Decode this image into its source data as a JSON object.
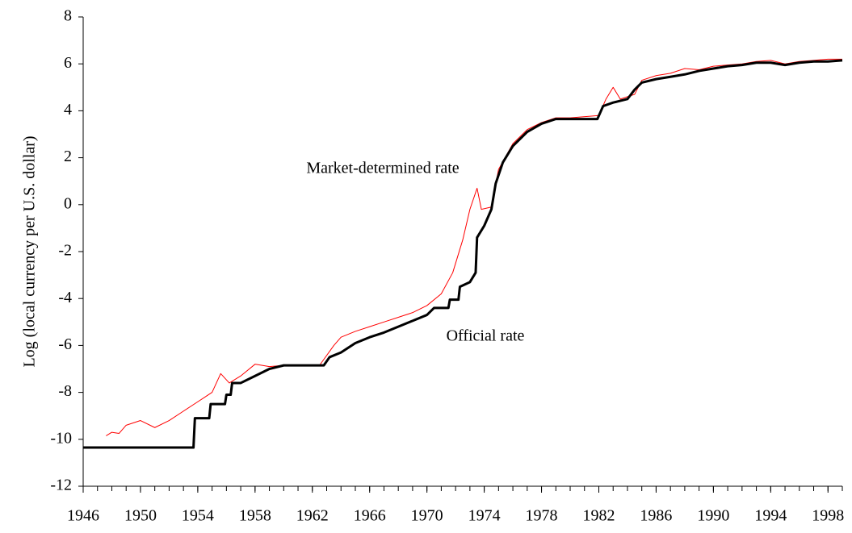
{
  "chart_data": {
    "type": "line",
    "y_label": "Log (local currency per U.S. dollar)",
    "annotations": [
      "Market-determined rate",
      "Official rate"
    ],
    "xlim": [
      1946,
      1999
    ],
    "xticks": [
      1946,
      1950,
      1954,
      1958,
      1962,
      1966,
      1970,
      1974,
      1978,
      1982,
      1986,
      1990,
      1994,
      1998
    ],
    "ylim": [
      -12,
      8
    ],
    "yticks": [
      -12,
      -10,
      -8,
      -6,
      -4,
      -2,
      0,
      2,
      4,
      6,
      8
    ],
    "grid": false,
    "series": [
      {
        "name": "Market-determined rate",
        "color": "#ff0000",
        "x": [
          1947.6,
          1948,
          1948.5,
          1949,
          1950,
          1951,
          1952,
          1953,
          1954,
          1955,
          1955.6,
          1956.2,
          1957,
          1958,
          1959,
          1960,
          1962.5,
          1963.5,
          1964,
          1965,
          1966,
          1967,
          1968,
          1969,
          1970,
          1971,
          1971.8,
          1972.5,
          1973,
          1973.5,
          1973.8,
          1974.5,
          1975,
          1976,
          1977,
          1978,
          1979,
          1980,
          1982,
          1982.5,
          1983,
          1983.5,
          1984.5,
          1985,
          1986,
          1987,
          1988,
          1989,
          1990,
          1991,
          1992,
          1993,
          1994,
          1995,
          1996,
          1997,
          1998,
          1999
        ],
        "values": [
          -9.85,
          -9.7,
          -9.75,
          -9.4,
          -9.2,
          -9.5,
          -9.2,
          -8.8,
          -8.4,
          -8.0,
          -7.2,
          -7.6,
          -7.3,
          -6.8,
          -6.9,
          -6.85,
          -6.85,
          -6.0,
          -5.65,
          -5.4,
          -5.2,
          -5.0,
          -4.8,
          -4.6,
          -4.3,
          -3.8,
          -2.9,
          -1.5,
          -0.2,
          0.7,
          -0.2,
          -0.1,
          1.5,
          2.6,
          3.2,
          3.5,
          3.7,
          3.7,
          3.8,
          4.5,
          5.0,
          4.5,
          4.7,
          5.3,
          5.5,
          5.6,
          5.8,
          5.75,
          5.9,
          5.95,
          6.0,
          6.1,
          6.15,
          6.0,
          6.1,
          6.15,
          6.2,
          6.2
        ]
      },
      {
        "name": "Official rate",
        "color": "#000000",
        "x": [
          1946,
          1953.7,
          1953.8,
          1954.8,
          1954.9,
          1955.9,
          1956,
          1956.3,
          1956.4,
          1957,
          1958,
          1959,
          1960,
          1962.8,
          1963.2,
          1964,
          1965,
          1966,
          1967,
          1968,
          1969,
          1970,
          1970.5,
          1971.5,
          1971.6,
          1972.2,
          1972.3,
          1973,
          1973.4,
          1973.5,
          1974,
          1974.5,
          1974.8,
          1975.3,
          1976,
          1977,
          1978,
          1979,
          1980,
          1981.9,
          1982.3,
          1983,
          1984,
          1984.5,
          1985,
          1986,
          1987,
          1988,
          1989,
          1990,
          1991,
          1992,
          1993,
          1994,
          1995,
          1996,
          1997,
          1998,
          1999
        ],
        "values": [
          -10.35,
          -10.35,
          -9.1,
          -9.1,
          -8.5,
          -8.5,
          -8.1,
          -8.1,
          -7.6,
          -7.6,
          -7.3,
          -7.0,
          -6.85,
          -6.85,
          -6.5,
          -6.3,
          -5.9,
          -5.65,
          -5.45,
          -5.2,
          -4.95,
          -4.7,
          -4.4,
          -4.4,
          -4.05,
          -4.05,
          -3.5,
          -3.3,
          -2.9,
          -1.4,
          -0.9,
          -0.2,
          0.9,
          1.8,
          2.5,
          3.1,
          3.45,
          3.65,
          3.65,
          3.65,
          4.2,
          4.35,
          4.5,
          4.9,
          5.2,
          5.35,
          5.45,
          5.55,
          5.7,
          5.8,
          5.9,
          5.95,
          6.05,
          6.05,
          5.95,
          6.05,
          6.1,
          6.1,
          6.15
        ]
      }
    ]
  }
}
